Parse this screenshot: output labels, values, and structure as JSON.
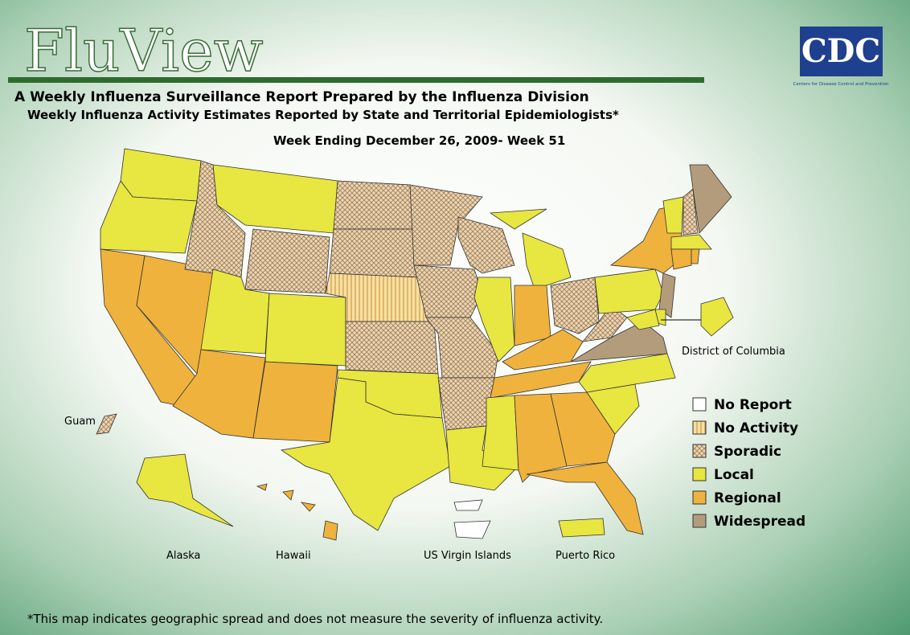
{
  "header": {
    "logo": "FluView",
    "agency": "CDC",
    "agency_full": "Centers for Disease Control and Prevention",
    "title": "A Weekly Influenza Surveillance Report Prepared by the Influenza Division",
    "subtitle": "Weekly Influenza Activity Estimates Reported by State and Territorial Epidemiologists*",
    "week": "Week Ending December 26, 2009- Week 51"
  },
  "legend": {
    "items": [
      {
        "label": "No Report",
        "color": "#ffffff"
      },
      {
        "label": "No Activity",
        "color": "#f7e0a0"
      },
      {
        "label": "Sporadic",
        "color": "#ead6b4"
      },
      {
        "label": "Local",
        "color": "#e8e640"
      },
      {
        "label": "Regional",
        "color": "#efb23c"
      },
      {
        "label": "Widespread",
        "color": "#b39c7c"
      }
    ]
  },
  "map_labels": {
    "dc": "District of Columbia",
    "guam": "Guam",
    "alaska": "Alaska",
    "hawaii": "Hawaii",
    "usvi": "US Virgin Islands",
    "puerto_rico": "Puerto Rico"
  },
  "footnote": "*This map indicates geographic spread and does not measure the severity of influenza activity."
}
